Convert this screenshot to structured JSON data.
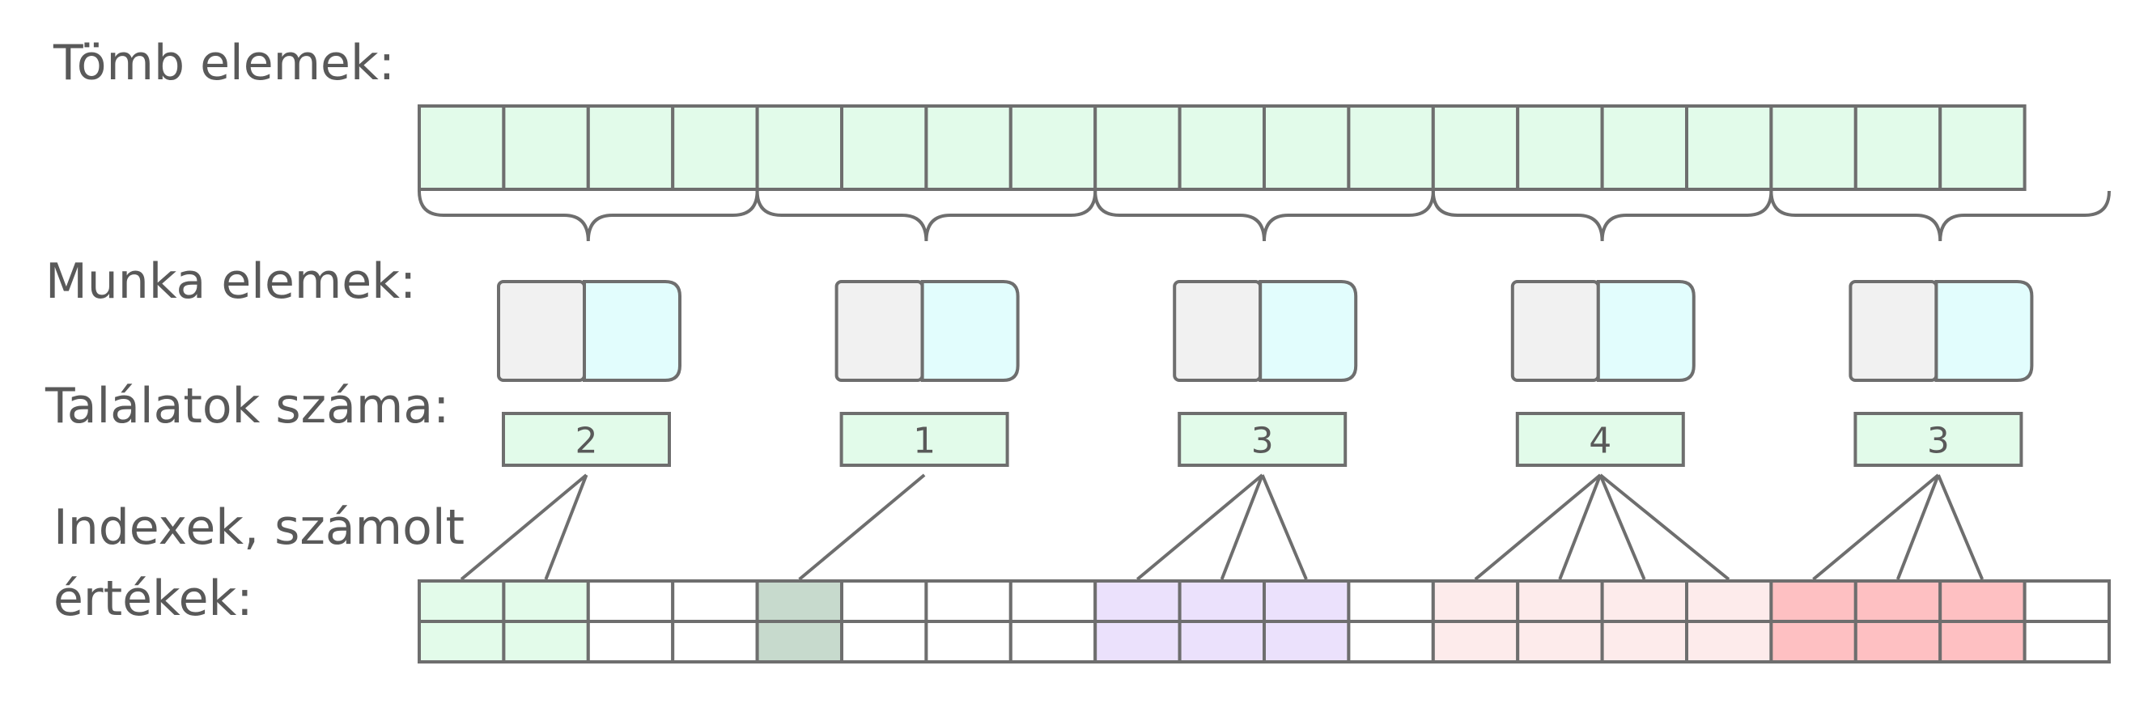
{
  "labels": {
    "array": "Tömb elemek:",
    "work": "Munka elemek:",
    "hits": "Találatok száma:",
    "indexes_line1": "Indexek, számolt",
    "indexes_line2": "értékek:"
  },
  "array_cell_count": 19,
  "group_size": 4,
  "work_groups": [
    {
      "hits": "2",
      "result_color": "#e3fbea"
    },
    {
      "hits": "1",
      "result_color": "#c7dacd"
    },
    {
      "hits": "3",
      "result_color": "#ebe1fc"
    },
    {
      "hits": "4",
      "result_color": "#fdebeb"
    },
    {
      "hits": "3",
      "result_color": "#fec0c2"
    }
  ],
  "colors": {
    "array_fill": "#e2fbea",
    "hit_box_fill": "#e2fbea",
    "work_left_fill": "#f1f1f1",
    "work_right_fill": "#e2fdfd",
    "stroke": "#6e6e6e",
    "text": "#595959"
  },
  "result_cell_count": 20
}
